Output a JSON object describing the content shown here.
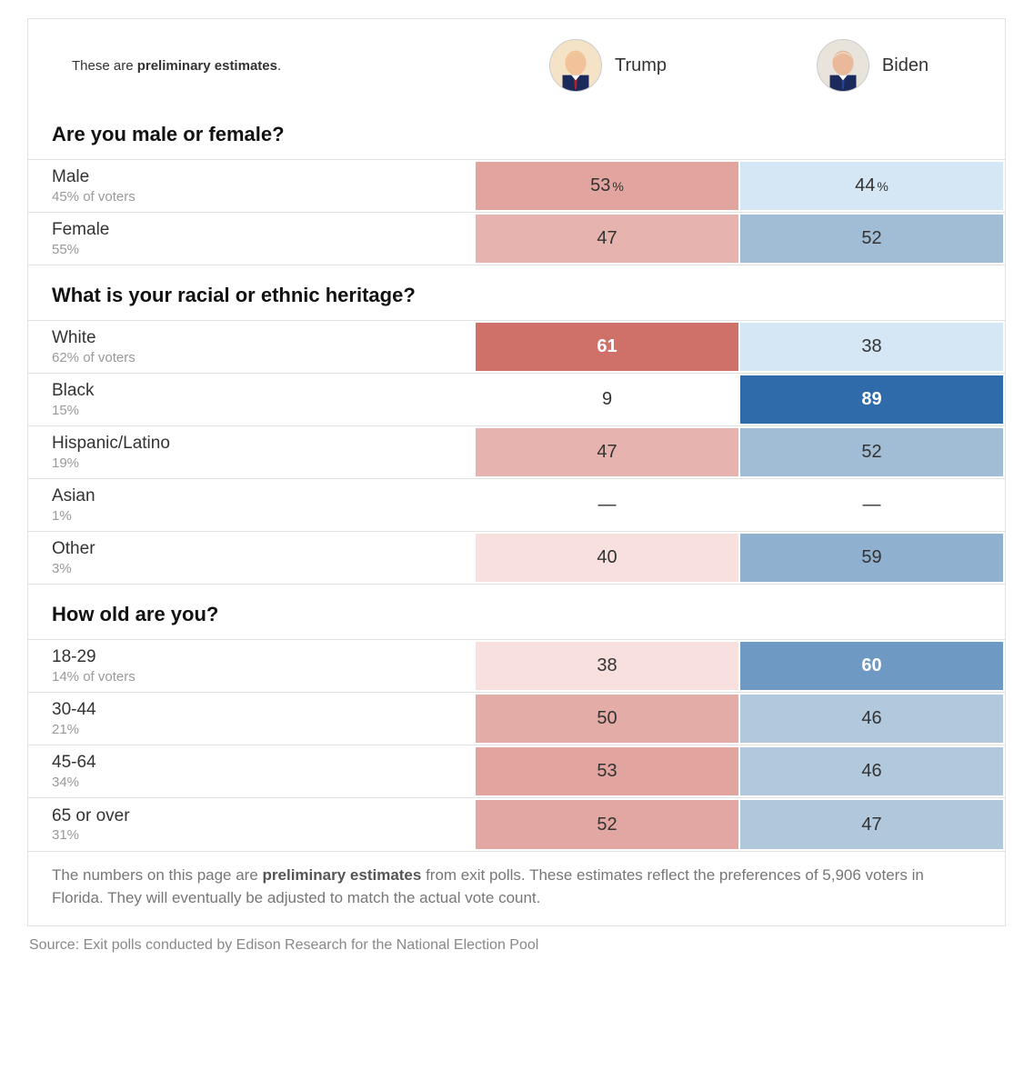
{
  "header": {
    "note_prefix": "These are ",
    "note_bold": "preliminary estimates",
    "note_suffix": ".",
    "candidates": [
      {
        "name": "Trump",
        "avatar_bg": "#f5e3c7",
        "suit": "#1a2a5a",
        "tie": "#b2222a",
        "face": "#f2c29b",
        "hair": "#e9cf8f"
      },
      {
        "name": "Biden",
        "avatar_bg": "#e8e4dc",
        "suit": "#1a2a5a",
        "tie": "#2a3f8f",
        "face": "#e9b999",
        "hair": "#e6e6e6"
      }
    ]
  },
  "colors": {
    "trump_scale": {
      "0": "#ffffff",
      "38": "#f7e0de",
      "40": "#f7e0de",
      "47": "#e7b3ae",
      "50": "#e4aca7",
      "52": "#e2a7a2",
      "53": "#e1a49f",
      "61": "#cf7069"
    },
    "biden_scale": {
      "0": "#ffffff",
      "38": "#d5e6f5",
      "44": "#d5e6f5",
      "46": "#b2c9dd",
      "47": "#b0c7dc",
      "52": "#a1bcd5",
      "59": "#8fb0ce",
      "60": "#6d99c3",
      "89": "#2f6aab"
    },
    "text_default": "#333333",
    "text_inverse": "#ffffff",
    "border": "#e2e2e2"
  },
  "sections": [
    {
      "question": "Are you male or female?",
      "show_pct_sign": true,
      "rows": [
        {
          "label": "Male",
          "sub": "45% of voters",
          "trump": 53,
          "biden": 44
        },
        {
          "label": "Female",
          "sub": "55%",
          "trump": 47,
          "biden": 52
        }
      ]
    },
    {
      "question": "What is your racial or ethnic heritage?",
      "show_pct_sign": false,
      "rows": [
        {
          "label": "White",
          "sub": "62% of voters",
          "trump": 61,
          "biden": 38
        },
        {
          "label": "Black",
          "sub": "15%",
          "trump": 9,
          "biden": 89
        },
        {
          "label": "Hispanic/Latino",
          "sub": "19%",
          "trump": 47,
          "biden": 52
        },
        {
          "label": "Asian",
          "sub": "1%",
          "trump": null,
          "biden": null
        },
        {
          "label": "Other",
          "sub": "3%",
          "trump": 40,
          "biden": 59
        }
      ]
    },
    {
      "question": "How old are you?",
      "show_pct_sign": false,
      "rows": [
        {
          "label": "18-29",
          "sub": "14% of voters",
          "trump": 38,
          "biden": 60
        },
        {
          "label": "30-44",
          "sub": "21%",
          "trump": 50,
          "biden": 46
        },
        {
          "label": "45-64",
          "sub": "34%",
          "trump": 53,
          "biden": 46
        },
        {
          "label": "65 or over",
          "sub": "31%",
          "trump": 52,
          "biden": 47
        }
      ]
    }
  ],
  "footnote": {
    "pre": "The numbers on this page are ",
    "bold": "preliminary estimates",
    "post": " from exit polls. These estimates reflect the preferences of 5,906 voters in Florida. They will eventually be adjusted to match the actual vote count."
  },
  "source": "Source: Exit polls conducted by Edison Research for the National Election Pool",
  "thresholds": {
    "inverse_text_min": 60
  }
}
